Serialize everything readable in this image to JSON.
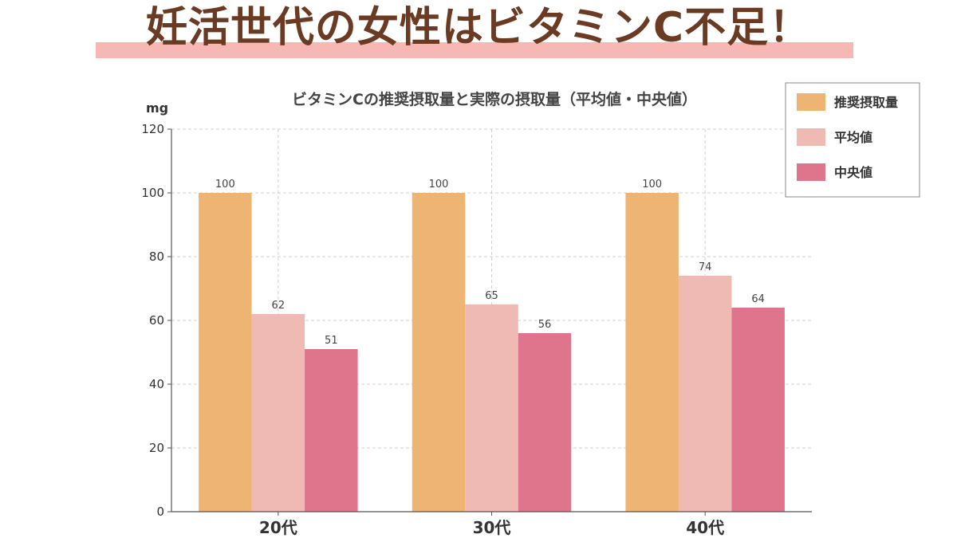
{
  "headline": "妊活世代の女性はビタミンC不足！",
  "chart_data": {
    "type": "bar",
    "title": "ビタミンCの推奨摂取量と実際の摂取量（平均値・中央値）",
    "ylabel": "mg",
    "xlabel": "",
    "ylim": [
      0,
      120
    ],
    "yticks": [
      0,
      20,
      40,
      60,
      80,
      100,
      120
    ],
    "categories": [
      "20代",
      "30代",
      "40代"
    ],
    "series": [
      {
        "name": "推奨摂取量",
        "values": [
          100,
          100,
          100
        ],
        "color": "#edb474"
      },
      {
        "name": "平均値",
        "values": [
          62,
          65,
          74
        ],
        "color": "#efbab3"
      },
      {
        "name": "中央値",
        "values": [
          51,
          56,
          64
        ],
        "color": "#de758c"
      }
    ],
    "grid": true,
    "legend_position": "top-right"
  },
  "colors": {
    "headline_text": "#6b3a22",
    "headline_highlight": "#f7b7b3"
  }
}
